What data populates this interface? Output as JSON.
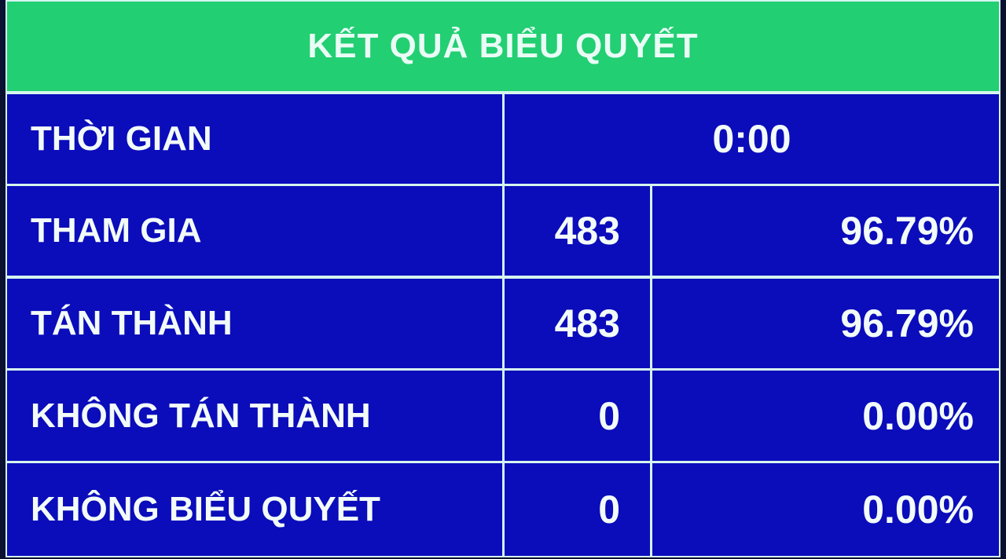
{
  "title": "KẾT QUẢ BIỂU QUYẾT",
  "time": {
    "label": "THỜI GIAN",
    "value": "0:00"
  },
  "rows": [
    {
      "label": "THAM GIA",
      "count": "483",
      "percent": "96.79%"
    },
    {
      "label": "TÁN THÀNH",
      "count": "483",
      "percent": "96.79%"
    },
    {
      "label": "KHÔNG TÁN THÀNH",
      "count": "0",
      "percent": "0.00%"
    },
    {
      "label": "KHÔNG BIỂU QUYẾT",
      "count": "0",
      "percent": "0.00%"
    }
  ],
  "colors": {
    "header": "#22cf72",
    "cell": "#0b0cba",
    "text": "#f2fbf8",
    "grid": "#d6f5ee"
  }
}
